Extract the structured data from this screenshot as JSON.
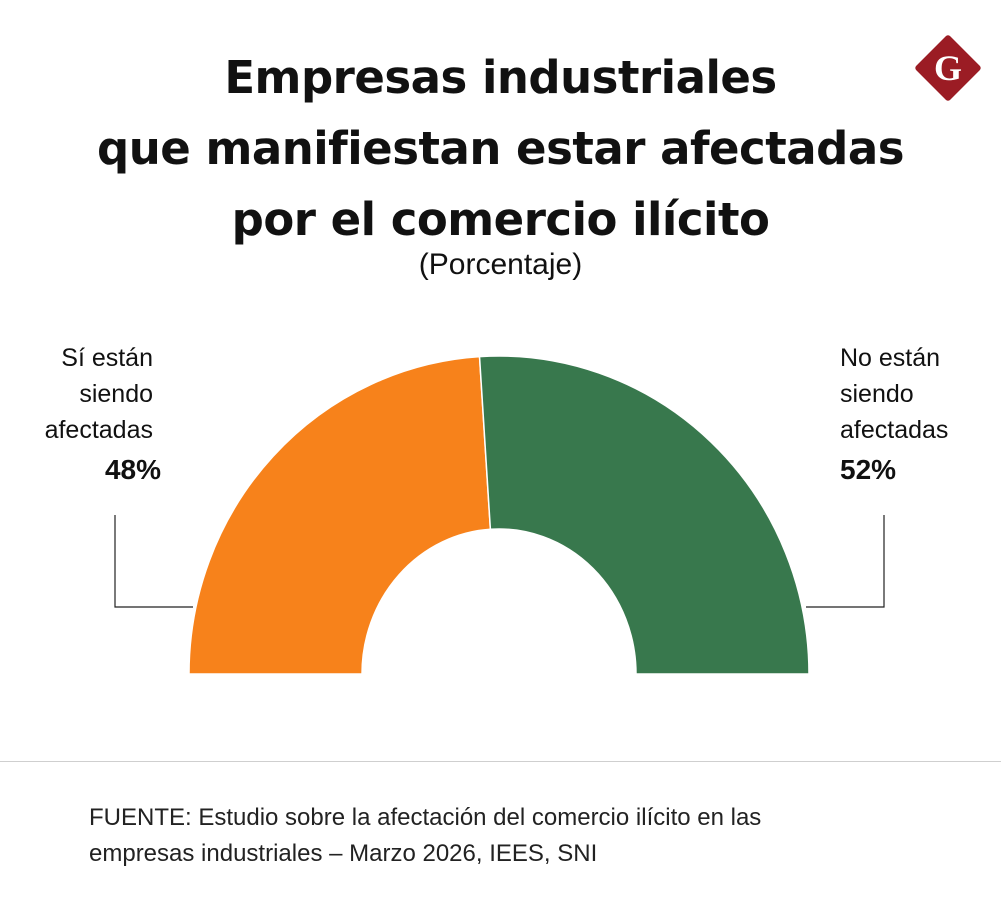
{
  "title_lines": [
    "Empresas industriales",
    "que manifiestan estar afectadas",
    "por el comercio ilícito"
  ],
  "subtitle": "(Porcentaje)",
  "logo": {
    "letter": "G",
    "color": "#9b1c24"
  },
  "chart_data": {
    "type": "pie",
    "variant": "half-donut",
    "title": "Empresas industriales que manifiestan estar afectadas por el comercio ilícito",
    "subtitle": "(Porcentaje)",
    "slices": [
      {
        "label_lines": [
          "Sí están",
          "siendo",
          "afectadas"
        ],
        "value": 48,
        "value_label": "48%",
        "color": "#f7821b"
      },
      {
        "label_lines": [
          "No están",
          "siendo",
          "afectadas"
        ],
        "value": 52,
        "value_label": "52%",
        "color": "#38784d"
      }
    ]
  },
  "source_lines": [
    "FUENTE: Estudio sobre la afectación del comercio ilícito en las",
    "empresas industriales – Marzo 2026, IEES, SNI"
  ]
}
